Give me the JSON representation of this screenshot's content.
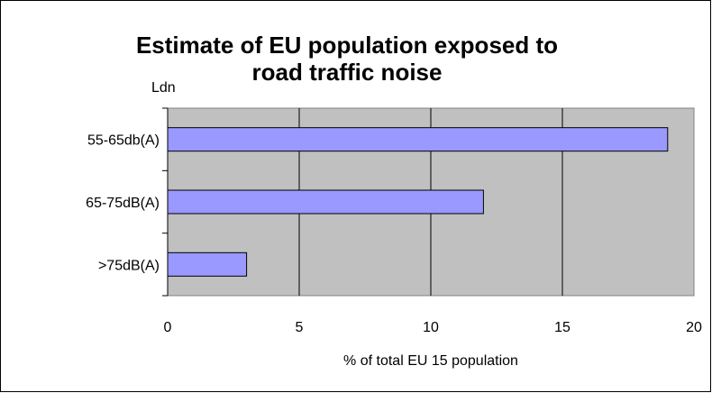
{
  "chart_data": {
    "type": "bar",
    "orientation": "horizontal",
    "title_lines": [
      "Estimate of EU population exposed to",
      "road traffic noise"
    ],
    "ylabel": "Ldn",
    "xlabel": "% of total EU 15 population",
    "categories": [
      "55-65db(A)",
      "65-75dB(A)",
      ">75dB(A)"
    ],
    "values": [
      19,
      12,
      3
    ],
    "xlim": [
      0,
      20
    ],
    "xticks": [
      "0",
      "5",
      "10",
      "15",
      "20"
    ],
    "grid": "vertical",
    "legend": "none",
    "colors": {
      "plot_background": "#c0c0c0",
      "bar_fill": "#9999ff",
      "bar_stroke": "#000000",
      "grid": "#000000"
    }
  }
}
